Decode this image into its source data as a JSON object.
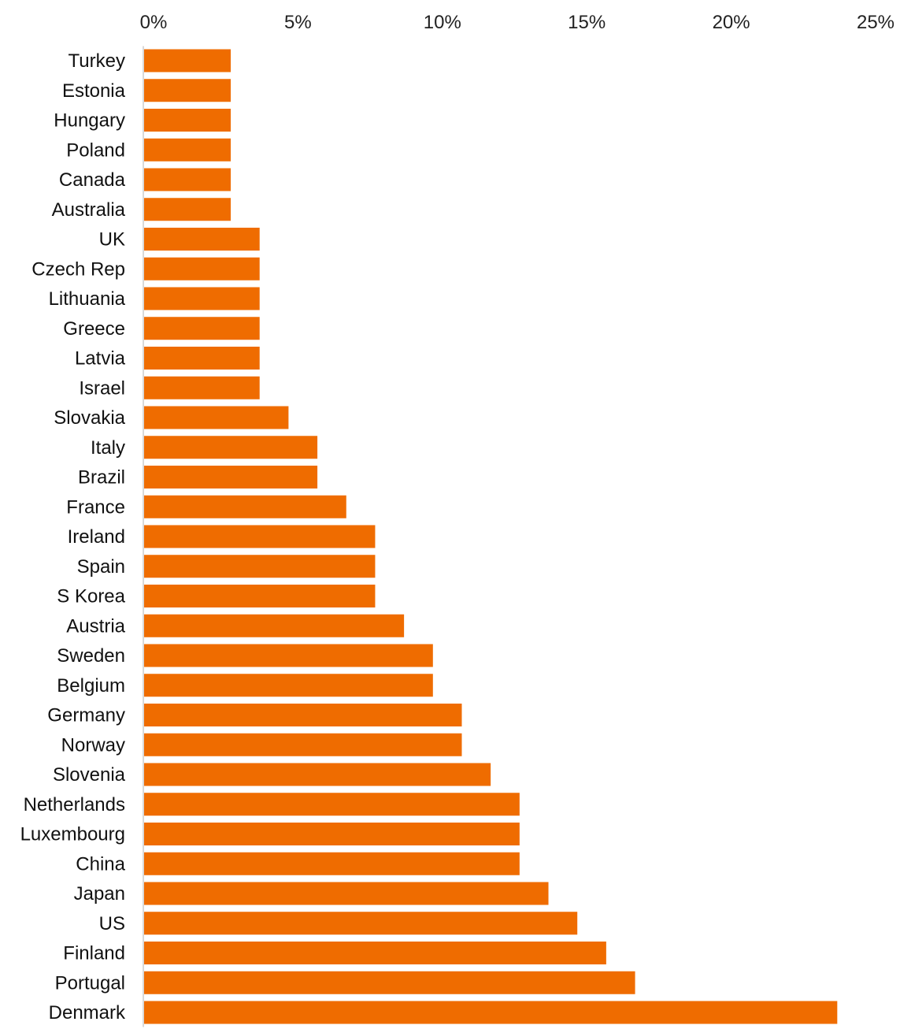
{
  "chart_data": {
    "type": "bar",
    "orientation": "horizontal",
    "title": "",
    "xlabel": "",
    "ylabel": "",
    "xlim": [
      0,
      25
    ],
    "x_ticks": [
      0,
      5,
      10,
      15,
      20,
      25
    ],
    "x_tick_labels": [
      "0%",
      "5%",
      "10%",
      "15%",
      "20%",
      "25%"
    ],
    "x_axis_position": "top",
    "grid": false,
    "legend": "none",
    "bar_color": "#ef6c00",
    "categories": [
      "Turkey",
      "Estonia",
      "Hungary",
      "Poland",
      "Canada",
      "Australia",
      "UK",
      "Czech Rep",
      "Lithuania",
      "Greece",
      "Latvia",
      "Israel",
      "Slovakia",
      "Italy",
      "Brazil",
      "France",
      "Ireland",
      "Spain",
      "S Korea",
      "Austria",
      "Sweden",
      "Belgium",
      "Germany",
      "Norway",
      "Slovenia",
      "Netherlands",
      "Luxembourg",
      "China",
      "Japan",
      "US",
      "Finland",
      "Portugal",
      "Denmark"
    ],
    "values": [
      3,
      3,
      3,
      3,
      3,
      3,
      4,
      4,
      4,
      4,
      4,
      4,
      5,
      6,
      6,
      7,
      8,
      8,
      8,
      9,
      10,
      10,
      11,
      11,
      12,
      13,
      13,
      13,
      14,
      15,
      16,
      17,
      24
    ]
  }
}
